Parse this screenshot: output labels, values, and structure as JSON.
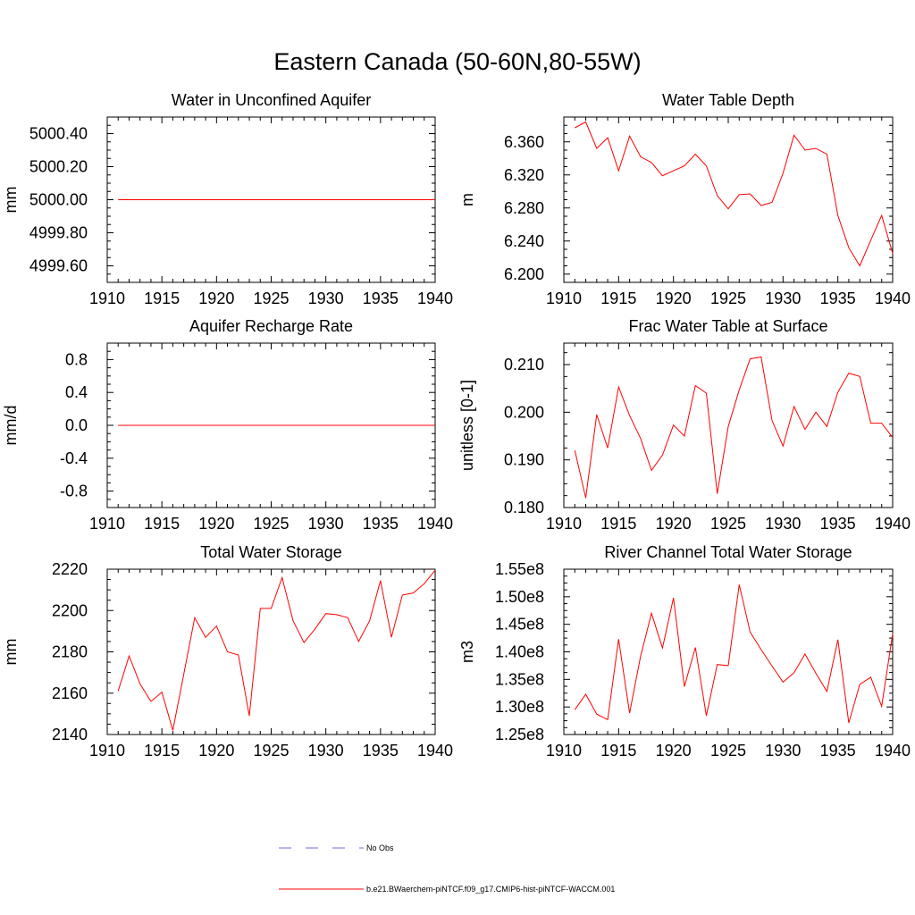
{
  "title": "Eastern Canada (50-60N,80-55W)",
  "chart_data": [
    {
      "type": "line",
      "title": "Water in Unconfined Aquifer",
      "ylabel": "mm",
      "xlim": [
        1910,
        1940
      ],
      "ylim": [
        4999.5,
        5000.5
      ],
      "xticks": [
        1910,
        1915,
        1920,
        1925,
        1930,
        1935,
        1940
      ],
      "yticks": [
        4999.6,
        4999.8,
        5000.0,
        5000.2,
        5000.4
      ],
      "ytick_labels": [
        "4999.60",
        "4999.80",
        "5000.00",
        "5000.20",
        "5000.40"
      ],
      "x": [
        1911,
        1912,
        1913,
        1914,
        1915,
        1916,
        1917,
        1918,
        1919,
        1920,
        1921,
        1922,
        1923,
        1924,
        1925,
        1926,
        1927,
        1928,
        1929,
        1930,
        1931,
        1932,
        1933,
        1934,
        1935,
        1936,
        1937,
        1938,
        1939,
        1940
      ],
      "series": [
        {
          "values": [
            5000,
            5000,
            5000,
            5000,
            5000,
            5000,
            5000,
            5000,
            5000,
            5000,
            5000,
            5000,
            5000,
            5000,
            5000,
            5000,
            5000,
            5000,
            5000,
            5000,
            5000,
            5000,
            5000,
            5000,
            5000,
            5000,
            5000,
            5000,
            5000,
            5000
          ]
        }
      ]
    },
    {
      "type": "line",
      "title": "Water Table Depth",
      "ylabel": "m",
      "xlim": [
        1910,
        1940
      ],
      "ylim": [
        6.19,
        6.39
      ],
      "xticks": [
        1910,
        1915,
        1920,
        1925,
        1930,
        1935,
        1940
      ],
      "yticks": [
        6.2,
        6.24,
        6.28,
        6.32,
        6.36
      ],
      "ytick_labels": [
        "6.200",
        "6.240",
        "6.280",
        "6.320",
        "6.360"
      ],
      "x": [
        1911,
        1912,
        1913,
        1914,
        1915,
        1916,
        1917,
        1918,
        1919,
        1920,
        1921,
        1922,
        1923,
        1924,
        1925,
        1926,
        1927,
        1928,
        1929,
        1930,
        1931,
        1932,
        1933,
        1934,
        1935,
        1936,
        1937,
        1938,
        1939,
        1940
      ],
      "series": [
        {
          "values": [
            6.377,
            6.384,
            6.352,
            6.365,
            6.325,
            6.367,
            6.342,
            6.335,
            6.319,
            6.325,
            6.331,
            6.345,
            6.331,
            6.295,
            6.279,
            6.296,
            6.297,
            6.283,
            6.287,
            6.322,
            6.368,
            6.35,
            6.352,
            6.345,
            6.271,
            6.232,
            6.21,
            6.241,
            6.271,
            6.225
          ]
        }
      ]
    },
    {
      "type": "line",
      "title": "Aquifer Recharge Rate",
      "ylabel": "mm/d",
      "xlim": [
        1910,
        1940
      ],
      "ylim": [
        -1.0,
        1.0
      ],
      "xticks": [
        1910,
        1915,
        1920,
        1925,
        1930,
        1935,
        1940
      ],
      "yticks": [
        -0.8,
        -0.4,
        0.0,
        0.4,
        0.8
      ],
      "ytick_labels": [
        "-0.8",
        "-0.4",
        "0.0",
        "0.4",
        "0.8"
      ],
      "x": [
        1911,
        1912,
        1913,
        1914,
        1915,
        1916,
        1917,
        1918,
        1919,
        1920,
        1921,
        1922,
        1923,
        1924,
        1925,
        1926,
        1927,
        1928,
        1929,
        1930,
        1931,
        1932,
        1933,
        1934,
        1935,
        1936,
        1937,
        1938,
        1939,
        1940
      ],
      "series": [
        {
          "values": [
            0,
            0,
            0,
            0,
            0,
            0,
            0,
            0,
            0,
            0,
            0,
            0,
            0,
            0,
            0,
            0,
            0,
            0,
            0,
            0,
            0,
            0,
            0,
            0,
            0,
            0,
            0,
            0,
            0,
            0
          ]
        }
      ]
    },
    {
      "type": "line",
      "title": "Frac Water Table at Surface",
      "ylabel": "unitless [0-1]",
      "xlim": [
        1910,
        1940
      ],
      "ylim": [
        0.18,
        0.2145
      ],
      "xticks": [
        1910,
        1915,
        1920,
        1925,
        1930,
        1935,
        1940
      ],
      "yticks": [
        0.18,
        0.19,
        0.2,
        0.21
      ],
      "ytick_labels": [
        "0.180",
        "0.190",
        "0.200",
        "0.210"
      ],
      "x": [
        1911,
        1912,
        1913,
        1914,
        1915,
        1916,
        1917,
        1918,
        1919,
        1920,
        1921,
        1922,
        1923,
        1924,
        1925,
        1926,
        1927,
        1928,
        1929,
        1930,
        1931,
        1932,
        1933,
        1934,
        1935,
        1936,
        1937,
        1938,
        1939,
        1940
      ],
      "series": [
        {
          "values": [
            0.192,
            0.182,
            0.1995,
            0.1925,
            0.2053,
            0.1993,
            0.1945,
            0.1878,
            0.191,
            0.1973,
            0.195,
            0.2056,
            0.204,
            0.1829,
            0.197,
            0.2047,
            0.2112,
            0.2116,
            0.1982,
            0.1929,
            0.2012,
            0.1964,
            0.2,
            0.197,
            0.2042,
            0.2082,
            0.2075,
            0.1977,
            0.1977,
            0.1947
          ]
        }
      ]
    },
    {
      "type": "line",
      "title": "Total Water Storage",
      "ylabel": "mm",
      "xlim": [
        1910,
        1940
      ],
      "ylim": [
        2140,
        2220
      ],
      "xticks": [
        1910,
        1915,
        1920,
        1925,
        1930,
        1935,
        1940
      ],
      "yticks": [
        2140,
        2160,
        2180,
        2200,
        2220
      ],
      "ytick_labels": [
        "2140",
        "2160",
        "2180",
        "2200",
        "2220"
      ],
      "x": [
        1911,
        1912,
        1913,
        1914,
        1915,
        1916,
        1917,
        1918,
        1919,
        1920,
        1921,
        1922,
        1923,
        1924,
        1925,
        1926,
        1927,
        1928,
        1929,
        1930,
        1931,
        1932,
        1933,
        1934,
        1935,
        1936,
        1937,
        1938,
        1939,
        1940
      ],
      "series": [
        {
          "values": [
            2161,
            2178,
            2164.5,
            2156,
            2160.5,
            2142,
            2169,
            2196.5,
            2187,
            2192.5,
            2180,
            2178.5,
            2149,
            2201,
            2201,
            2216,
            2195,
            2184.5,
            2191,
            2198.5,
            2198,
            2196.5,
            2185,
            2195,
            2214.5,
            2187,
            2207.5,
            2208.5,
            2213,
            2219.5
          ]
        }
      ]
    },
    {
      "type": "line",
      "title": "River Channel Total Water Storage",
      "ylabel": "m3",
      "xlim": [
        1910,
        1940
      ],
      "ylim": [
        125000000,
        155000000
      ],
      "xticks": [
        1910,
        1915,
        1920,
        1925,
        1930,
        1935,
        1940
      ],
      "yticks": [
        125000000,
        130000000,
        135000000,
        140000000,
        145000000,
        150000000,
        155000000
      ],
      "ytick_labels": [
        "1.25e8",
        "1.30e8",
        "1.35e8",
        "1.40e8",
        "1.45e8",
        "1.50e8",
        "1.55e8"
      ],
      "x": [
        1911,
        1912,
        1913,
        1914,
        1915,
        1916,
        1917,
        1918,
        1919,
        1920,
        1921,
        1922,
        1923,
        1924,
        1925,
        1926,
        1927,
        1928,
        1929,
        1930,
        1931,
        1932,
        1933,
        1934,
        1935,
        1936,
        1937,
        1938,
        1939,
        1940
      ],
      "series": [
        {
          "values": [
            129500000,
            132300000,
            128700000,
            127700000,
            142300000,
            128900000,
            139200000,
            147000000,
            140700000,
            149800000,
            133700000,
            140800000,
            128400000,
            137700000,
            137500000,
            152200000,
            143600000,
            140400000,
            137400000,
            134500000,
            136200000,
            139600000,
            136100000,
            132800000,
            142200000,
            127100000,
            134100000,
            135400000,
            130100000,
            143300000
          ]
        }
      ]
    }
  ],
  "legend": [
    {
      "label": "No Obs",
      "color": "#6b6bd6",
      "style": "dashed"
    },
    {
      "label": "b.e21.BWaerchem-piNTCF.f09_g17.CMIP6-hist-piNTCF-WACCM.001",
      "color": "#ff0000",
      "style": "solid"
    }
  ],
  "line_color": "#ff0000"
}
